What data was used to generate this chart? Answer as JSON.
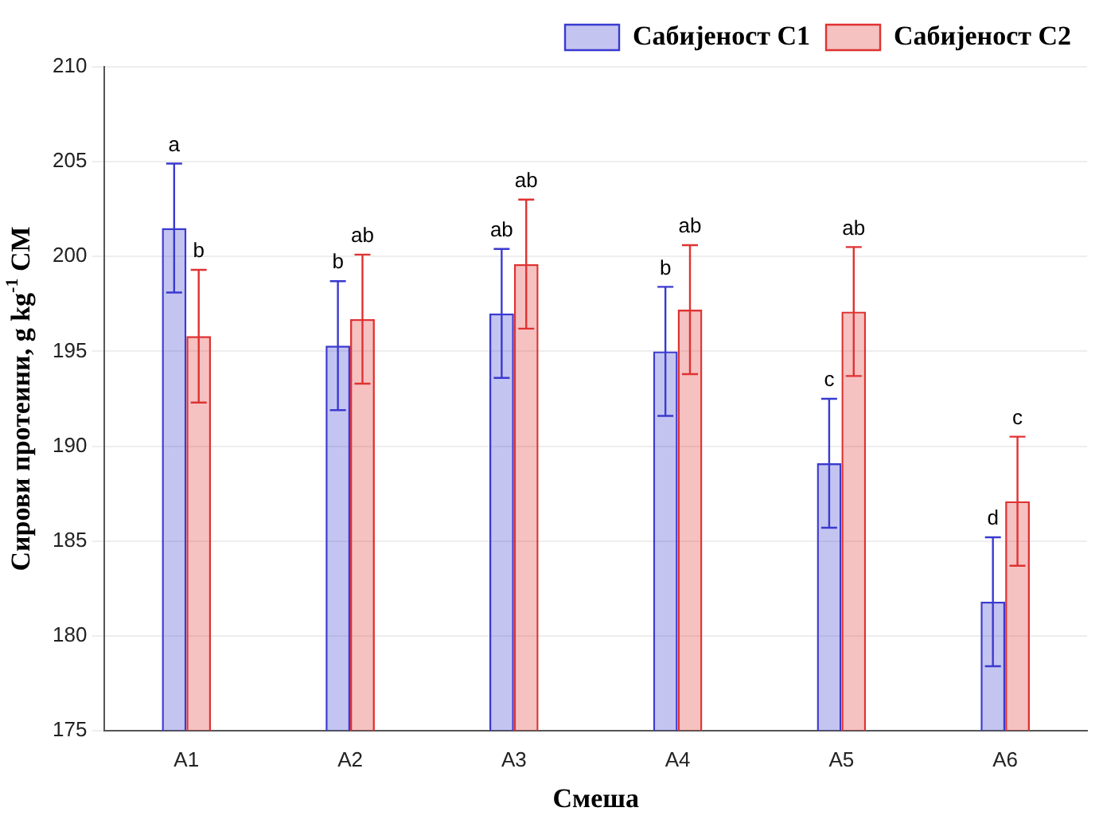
{
  "chart_data": {
    "type": "bar",
    "xlabel": "Смеша",
    "ylabel": "Сирови протеини, g kg$^{-1}$ СМ",
    "categories": [
      "A1",
      "A2",
      "A3",
      "A4",
      "A5",
      "A6"
    ],
    "series": [
      {
        "name": "Сабијеност С1",
        "color": "#3a3ad0",
        "values": [
          201.5,
          195.3,
          197.0,
          195.0,
          189.1,
          181.8
        ],
        "errors": [
          3.4,
          3.4,
          3.4,
          3.4,
          3.4,
          3.4
        ]
      },
      {
        "name": "Сабијеност С2",
        "color": "#e03232",
        "values": [
          195.8,
          196.7,
          199.6,
          197.2,
          197.1,
          187.1
        ],
        "errors": [
          3.5,
          3.4,
          3.4,
          3.4,
          3.4,
          3.4
        ]
      }
    ],
    "ylim": [
      175,
      210
    ],
    "yticks": [
      175,
      180,
      185,
      190,
      195,
      200,
      205,
      210
    ],
    "grid": "y",
    "legend": "top right",
    "annotations": [
      {
        "text": "a",
        "x": "A1",
        "y": 204.9
      },
      {
        "text": "b",
        "x": "A1",
        "y": 199.3
      },
      {
        "text": "b",
        "x": "A2",
        "y": 198.7
      },
      {
        "text": "ab",
        "x": "A2",
        "y": 200.1
      },
      {
        "text": "ab",
        "x": "A3",
        "y": 200.4
      },
      {
        "text": "ab",
        "x": "A3",
        "y": 203.0
      },
      {
        "text": "b",
        "x": "A4",
        "y": 198.4
      },
      {
        "text": "ab",
        "x": "A4",
        "y": 200.6
      },
      {
        "text": "c",
        "x": "A5",
        "y": 192.5
      },
      {
        "text": "ab",
        "x": "A5",
        "y": 200.5
      },
      {
        "text": "d",
        "x": "A6",
        "y": 185.2
      },
      {
        "text": "c",
        "x": "A6",
        "y": 190.5
      }
    ]
  }
}
